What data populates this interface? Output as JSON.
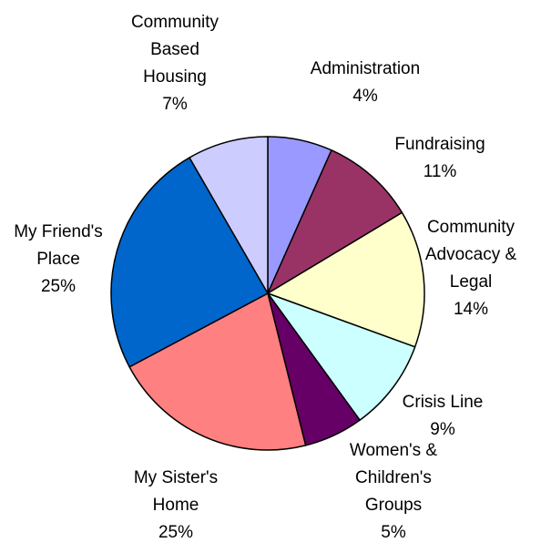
{
  "chart_data": {
    "type": "pie",
    "title": "",
    "slices": [
      {
        "label": [
          "Administration"
        ],
        "value": 4,
        "percent_label": "4%",
        "color": "#9999ff"
      },
      {
        "label": [
          "Fundraising"
        ],
        "value": 11,
        "percent_label": "11%",
        "color": "#993366"
      },
      {
        "label": [
          "Community",
          "Advocacy &",
          "Legal"
        ],
        "value": 14,
        "percent_label": "14%",
        "color": "#ffffcc"
      },
      {
        "label": [
          "Crisis Line"
        ],
        "value": 9,
        "percent_label": "9%",
        "color": "#ccffff"
      },
      {
        "label": [
          "Women's &",
          "Children's",
          "Groups"
        ],
        "value": 5,
        "percent_label": "5%",
        "color": "#660066"
      },
      {
        "label": [
          "My Sister's",
          "Home"
        ],
        "value": 25,
        "percent_label": "25%",
        "color": "#ff8080"
      },
      {
        "label": [
          "My Friend's",
          "Place"
        ],
        "value": 25,
        "percent_label": "25%",
        "color": "#0066cc"
      },
      {
        "label": [
          "Community",
          "Based",
          "Housing"
        ],
        "value": 7,
        "percent_label": "7%",
        "color": "#ccccff"
      }
    ],
    "start_position": "12 o'clock",
    "direction": "clockwise",
    "legend": "none"
  }
}
